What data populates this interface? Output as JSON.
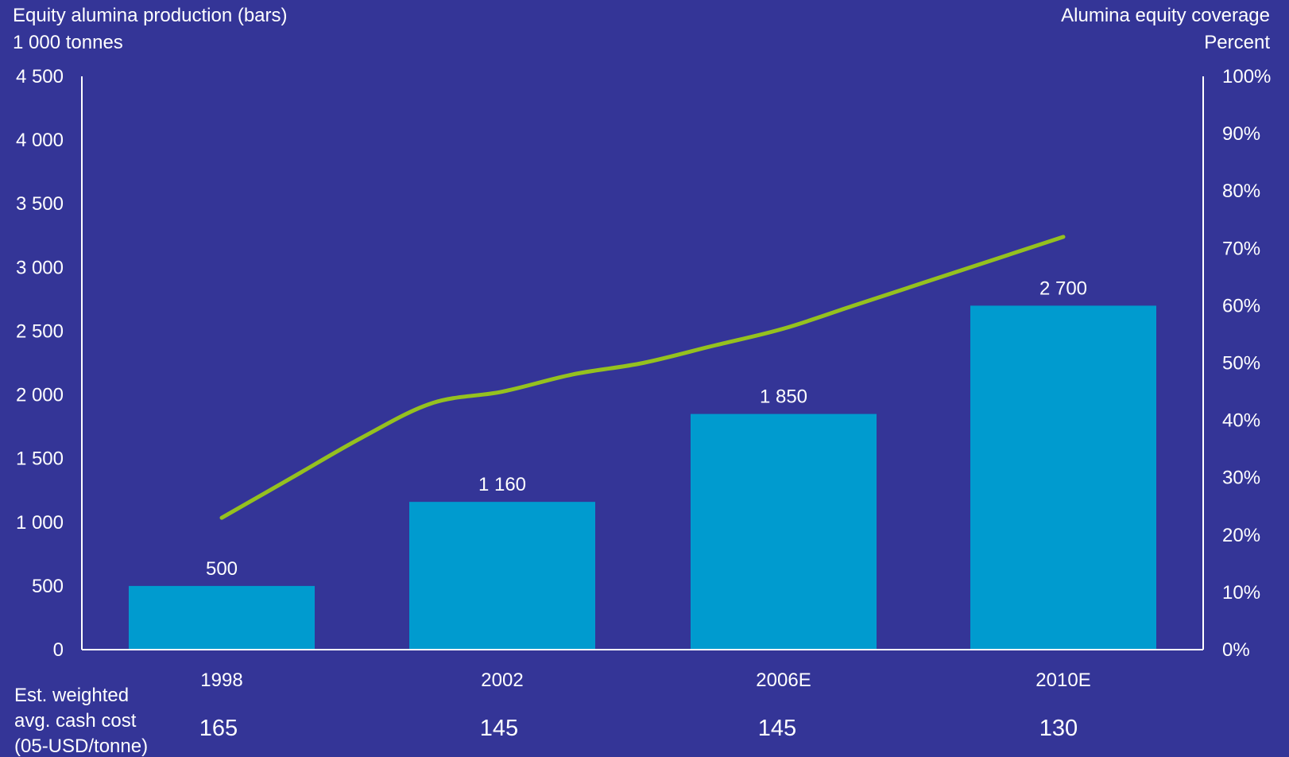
{
  "chart_data": {
    "type": "bar",
    "title": "",
    "y_left": {
      "label": "Equity alumina production (bars)",
      "unit": "1 000 tonnes",
      "range": [
        0,
        4500
      ],
      "ticks": [
        0,
        500,
        1000,
        1500,
        2000,
        2500,
        3000,
        3500,
        4000,
        4500
      ],
      "tick_labels": [
        "0",
        "500",
        "1 000",
        "1 500",
        "2 000",
        "2 500",
        "3 000",
        "3 500",
        "4 000",
        "4 500"
      ]
    },
    "y_right": {
      "label": "Alumina equity coverage",
      "unit": "Percent",
      "range": [
        0,
        100
      ],
      "ticks": [
        0,
        10,
        20,
        30,
        40,
        50,
        60,
        70,
        80,
        90,
        100
      ],
      "tick_labels": [
        "0%",
        "10%",
        "20%",
        "30%",
        "40%",
        "50%",
        "60%",
        "70%",
        "80%",
        "90%",
        "100%"
      ]
    },
    "categories": [
      "1998",
      "2002",
      "2006E",
      "2010E"
    ],
    "series": [
      {
        "type": "bar",
        "axis": "left",
        "values": [
          500,
          1160,
          1850,
          2700
        ],
        "value_labels": [
          "500",
          "1 160",
          "1 850",
          "2 700"
        ],
        "color": "#009bcf"
      },
      {
        "type": "line",
        "axis": "right",
        "x": [
          1998,
          1999,
          2000,
          2001,
          2002,
          2003,
          2004,
          2005,
          2006,
          2007,
          2008,
          2009,
          2010
        ],
        "values": [
          23,
          30,
          37,
          43,
          45,
          48,
          50,
          53,
          56,
          60,
          64,
          68,
          72
        ],
        "color": "#95c11f"
      }
    ],
    "cost_row": {
      "label_lines": [
        "Est. weighted",
        "avg. cash cost",
        "(05-USD/tonne)"
      ],
      "values": [
        "165",
        "145",
        "145",
        "130"
      ]
    },
    "grid": false,
    "legend": "none"
  }
}
